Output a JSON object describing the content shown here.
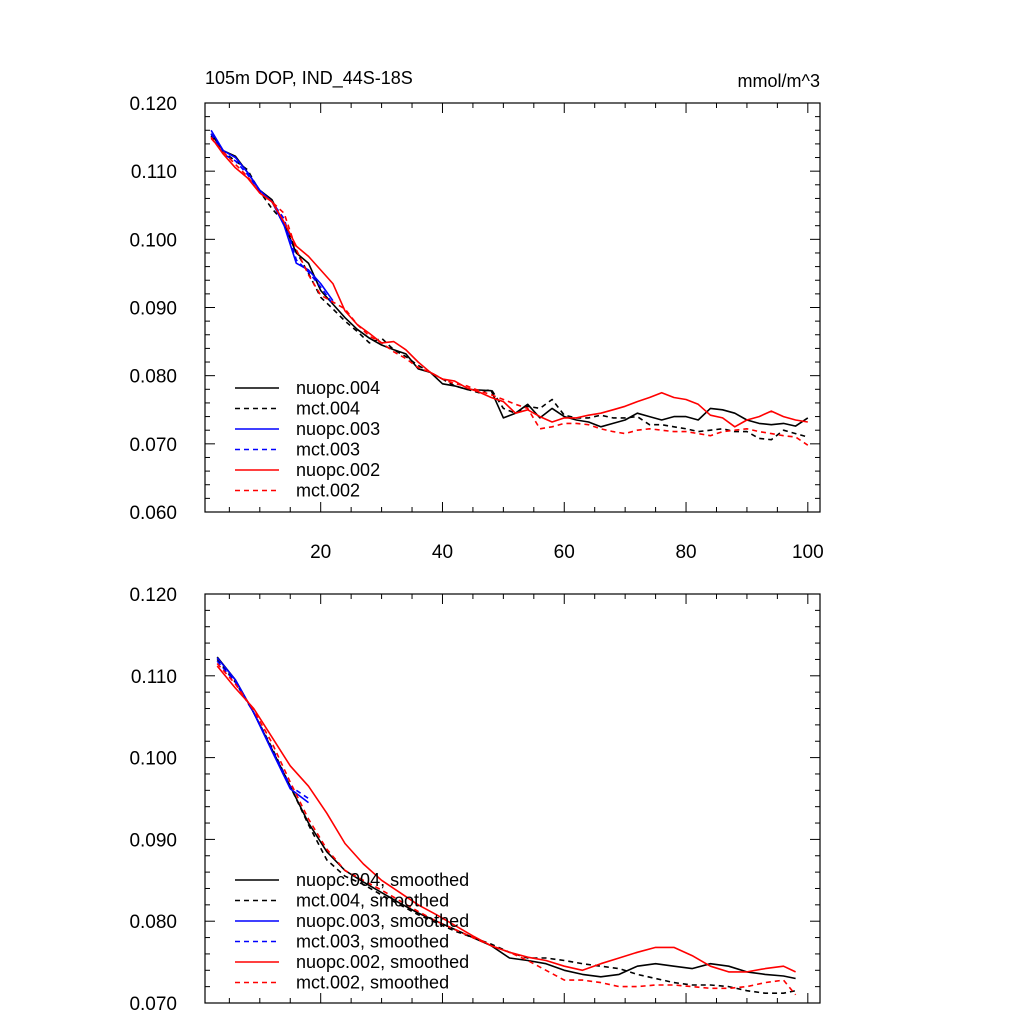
{
  "chart_data": [
    {
      "type": "line",
      "title": "105m DOP, IND_44S-18S",
      "units": "mmol/m^3",
      "xlim": [
        1,
        102
      ],
      "ylim": [
        0.06,
        0.12
      ],
      "xticks": [
        20,
        40,
        60,
        80,
        100
      ],
      "xtick_labels": [
        "20",
        "40",
        "60",
        "80",
        "100"
      ],
      "yticks": [
        0.06,
        0.07,
        0.08,
        0.09,
        0.1,
        0.11,
        0.12
      ],
      "ytick_labels": [
        "0.060",
        "0.070",
        "0.080",
        "0.090",
        "0.100",
        "0.110",
        "0.120"
      ],
      "legend_position": "lower-left",
      "series": [
        {
          "name": "nuopc.004",
          "color": "#000000",
          "dash": "solid",
          "x": [
            2,
            4,
            6,
            8,
            10,
            12,
            14,
            16,
            18,
            20,
            22,
            24,
            26,
            28,
            30,
            32,
            34,
            36,
            38,
            40,
            42,
            44,
            46,
            48,
            50,
            52,
            54,
            56,
            58,
            60,
            62,
            64,
            66,
            68,
            70,
            72,
            74,
            76,
            78,
            80,
            82,
            84,
            86,
            88,
            90,
            92,
            94,
            96,
            98,
            100
          ],
          "y": [
            0.1155,
            0.113,
            0.1122,
            0.1098,
            0.1072,
            0.1058,
            0.1022,
            0.098,
            0.0965,
            0.0925,
            0.0905,
            0.0885,
            0.0868,
            0.0855,
            0.0845,
            0.0838,
            0.0832,
            0.081,
            0.0805,
            0.0788,
            0.0785,
            0.078,
            0.0779,
            0.0778,
            0.0738,
            0.0745,
            0.0758,
            0.0738,
            0.0752,
            0.074,
            0.0735,
            0.0732,
            0.0725,
            0.073,
            0.0735,
            0.0745,
            0.074,
            0.0735,
            0.074,
            0.074,
            0.0735,
            0.0752,
            0.075,
            0.0745,
            0.0735,
            0.073,
            0.0728,
            0.073,
            0.0726,
            0.0738
          ]
        },
        {
          "name": "mct.004",
          "color": "#000000",
          "dash": "dashed",
          "x": [
            2,
            4,
            6,
            8,
            10,
            12,
            14,
            16,
            18,
            20,
            22,
            24,
            26,
            28,
            30,
            32,
            34,
            36,
            38,
            40,
            42,
            44,
            46,
            48,
            50,
            52,
            54,
            56,
            58,
            60,
            62,
            64,
            66,
            68,
            70,
            72,
            74,
            76,
            78,
            80,
            82,
            84,
            86,
            88,
            90,
            92,
            94,
            96,
            98,
            100
          ],
          "y": [
            0.1152,
            0.1128,
            0.1115,
            0.1102,
            0.107,
            0.1045,
            0.1025,
            0.0982,
            0.095,
            0.0915,
            0.0898,
            0.088,
            0.0865,
            0.0848,
            0.0855,
            0.0838,
            0.0828,
            0.0815,
            0.0805,
            0.0795,
            0.0785,
            0.078,
            0.0775,
            0.078,
            0.0752,
            0.0745,
            0.0755,
            0.0752,
            0.0765,
            0.0742,
            0.0738,
            0.0738,
            0.0742,
            0.0738,
            0.0738,
            0.074,
            0.0728,
            0.0728,
            0.0725,
            0.0722,
            0.0718,
            0.072,
            0.0722,
            0.0718,
            0.0718,
            0.0708,
            0.0706,
            0.072,
            0.0715,
            0.071
          ]
        },
        {
          "name": "nuopc.003",
          "color": "#0000ff",
          "dash": "solid",
          "x": [
            2,
            4,
            6,
            8,
            10,
            12,
            14,
            16,
            18,
            20,
            22
          ],
          "y": [
            0.116,
            0.113,
            0.112,
            0.1098,
            0.1072,
            0.1055,
            0.102,
            0.0965,
            0.0955,
            0.0935,
            0.091
          ]
        },
        {
          "name": "mct.003",
          "color": "#0000ff",
          "dash": "dashed",
          "x": [
            2,
            4,
            6,
            8,
            10,
            12,
            14,
            16,
            18,
            20,
            22
          ],
          "y": [
            0.1155,
            0.1125,
            0.1115,
            0.1095,
            0.107,
            0.1055,
            0.103,
            0.097,
            0.0952,
            0.093,
            0.0905
          ]
        },
        {
          "name": "nuopc.002",
          "color": "#ff0000",
          "dash": "solid",
          "x": [
            2,
            4,
            6,
            8,
            10,
            12,
            14,
            16,
            18,
            20,
            22,
            24,
            26,
            28,
            30,
            32,
            34,
            36,
            38,
            40,
            42,
            44,
            46,
            48,
            50,
            52,
            54,
            56,
            58,
            60,
            62,
            64,
            66,
            68,
            70,
            72,
            74,
            76,
            78,
            80,
            82,
            84,
            86,
            88,
            90,
            92,
            94,
            96,
            98,
            100
          ],
          "y": [
            0.115,
            0.1125,
            0.1105,
            0.109,
            0.1068,
            0.1055,
            0.1025,
            0.099,
            0.0975,
            0.0955,
            0.0935,
            0.0895,
            0.0875,
            0.0862,
            0.0848,
            0.085,
            0.0838,
            0.082,
            0.0805,
            0.0795,
            0.0792,
            0.0782,
            0.0776,
            0.0768,
            0.0762,
            0.0745,
            0.075,
            0.074,
            0.0732,
            0.0738,
            0.0738,
            0.0742,
            0.0745,
            0.075,
            0.0755,
            0.0762,
            0.0768,
            0.0775,
            0.0768,
            0.0765,
            0.0758,
            0.0742,
            0.0738,
            0.0725,
            0.0735,
            0.074,
            0.0748,
            0.074,
            0.0735,
            0.0732
          ]
        },
        {
          "name": "mct.002",
          "color": "#ff0000",
          "dash": "dashed",
          "x": [
            2,
            4,
            6,
            8,
            10,
            12,
            14,
            16,
            18,
            20,
            22,
            24,
            26,
            28,
            30,
            32,
            34,
            36,
            38,
            40,
            42,
            44,
            46,
            48,
            50,
            52,
            54,
            56,
            58,
            60,
            62,
            64,
            66,
            68,
            70,
            72,
            74,
            76,
            78,
            80,
            82,
            84,
            86,
            88,
            90,
            92,
            94,
            96,
            98,
            100
          ],
          "y": [
            0.1148,
            0.1128,
            0.111,
            0.1092,
            0.1068,
            0.1055,
            0.1038,
            0.0985,
            0.0948,
            0.0918,
            0.0908,
            0.0898,
            0.0875,
            0.0858,
            0.0848,
            0.0835,
            0.0825,
            0.0812,
            0.0805,
            0.0795,
            0.0788,
            0.0785,
            0.0778,
            0.0772,
            0.0765,
            0.0758,
            0.0752,
            0.0722,
            0.0725,
            0.073,
            0.073,
            0.0728,
            0.0722,
            0.0718,
            0.0715,
            0.072,
            0.0722,
            0.072,
            0.0718,
            0.0718,
            0.0715,
            0.0712,
            0.0718,
            0.072,
            0.0722,
            0.0718,
            0.0715,
            0.0712,
            0.071,
            0.0698
          ]
        }
      ]
    },
    {
      "type": "line",
      "title": "",
      "xlim": [
        1,
        102
      ],
      "ylim": [
        0.07,
        0.12
      ],
      "xticks": [
        20,
        40,
        60,
        80,
        100
      ],
      "xtick_labels": [],
      "yticks": [
        0.07,
        0.08,
        0.09,
        0.1,
        0.11,
        0.12
      ],
      "ytick_labels": [
        "0.070",
        "0.080",
        "0.090",
        "0.100",
        "0.110",
        "0.120"
      ],
      "legend_position": "lower-left",
      "series": [
        {
          "name": "nuopc.004, smoothed",
          "color": "#000000",
          "dash": "solid",
          "x": [
            3,
            6,
            9,
            12,
            15,
            18,
            21,
            24,
            27,
            30,
            33,
            36,
            39,
            42,
            45,
            48,
            51,
            54,
            57,
            60,
            63,
            66,
            69,
            72,
            75,
            78,
            81,
            84,
            87,
            90,
            93,
            96,
            98
          ],
          "y": [
            0.1123,
            0.1095,
            0.1055,
            0.101,
            0.0965,
            0.092,
            0.0885,
            0.0862,
            0.0848,
            0.0835,
            0.0822,
            0.081,
            0.08,
            0.079,
            0.078,
            0.077,
            0.0755,
            0.0752,
            0.0748,
            0.074,
            0.0735,
            0.0732,
            0.0735,
            0.0745,
            0.0748,
            0.0745,
            0.0742,
            0.0748,
            0.0745,
            0.0738,
            0.0735,
            0.0733,
            0.073
          ]
        },
        {
          "name": "mct.004, smoothed",
          "color": "#000000",
          "dash": "dashed",
          "x": [
            3,
            6,
            9,
            12,
            15,
            18,
            21,
            24,
            27,
            30,
            33,
            36,
            39,
            42,
            45,
            48,
            51,
            54,
            57,
            60,
            63,
            66,
            69,
            72,
            75,
            78,
            81,
            84,
            87,
            90,
            93,
            96,
            98
          ],
          "y": [
            0.112,
            0.1092,
            0.1055,
            0.1012,
            0.0965,
            0.0918,
            0.0875,
            0.0855,
            0.0845,
            0.0832,
            0.082,
            0.0808,
            0.0798,
            0.0788,
            0.078,
            0.0772,
            0.0762,
            0.0755,
            0.0755,
            0.0752,
            0.0748,
            0.0745,
            0.0742,
            0.0735,
            0.073,
            0.0725,
            0.0722,
            0.0722,
            0.072,
            0.0715,
            0.0712,
            0.0712,
            0.0715
          ]
        },
        {
          "name": "nuopc.003, smoothed",
          "color": "#0000ff",
          "dash": "solid",
          "x": [
            3,
            6,
            9,
            12,
            15,
            18
          ],
          "y": [
            0.1122,
            0.1095,
            0.1055,
            0.1008,
            0.0962,
            0.0945
          ]
        },
        {
          "name": "mct.003, smoothed",
          "color": "#0000ff",
          "dash": "dashed",
          "x": [
            3,
            6,
            9,
            12,
            15,
            18
          ],
          "y": [
            0.1118,
            0.1092,
            0.1055,
            0.101,
            0.0965,
            0.095
          ]
        },
        {
          "name": "nuopc.002, smoothed",
          "color": "#ff0000",
          "dash": "solid",
          "x": [
            3,
            6,
            9,
            12,
            15,
            18,
            21,
            24,
            27,
            30,
            33,
            36,
            39,
            42,
            45,
            48,
            51,
            54,
            57,
            60,
            63,
            66,
            69,
            72,
            75,
            78,
            81,
            84,
            87,
            90,
            93,
            96,
            98
          ],
          "y": [
            0.1112,
            0.1085,
            0.106,
            0.1025,
            0.099,
            0.0965,
            0.0932,
            0.0895,
            0.087,
            0.085,
            0.0835,
            0.082,
            0.0808,
            0.0795,
            0.0782,
            0.077,
            0.0762,
            0.0756,
            0.0752,
            0.0745,
            0.074,
            0.0748,
            0.0755,
            0.0762,
            0.0768,
            0.0768,
            0.0758,
            0.0745,
            0.0738,
            0.0738,
            0.0742,
            0.0745,
            0.0738
          ]
        },
        {
          "name": "mct.002, smoothed",
          "color": "#ff0000",
          "dash": "dashed",
          "x": [
            3,
            6,
            9,
            12,
            15,
            18,
            21,
            24,
            27,
            30,
            33,
            36,
            39,
            42,
            45,
            48,
            51,
            54,
            57,
            60,
            63,
            66,
            69,
            72,
            75,
            78,
            81,
            84,
            87,
            90,
            93,
            96,
            98
          ],
          "y": [
            0.1115,
            0.109,
            0.1058,
            0.1018,
            0.097,
            0.0925,
            0.0888,
            0.0862,
            0.085,
            0.0838,
            0.0825,
            0.0812,
            0.08,
            0.079,
            0.078,
            0.077,
            0.0762,
            0.0752,
            0.074,
            0.0728,
            0.0728,
            0.0725,
            0.072,
            0.072,
            0.0722,
            0.0722,
            0.072,
            0.0718,
            0.0718,
            0.072,
            0.0725,
            0.0728,
            0.071
          ]
        }
      ]
    }
  ]
}
